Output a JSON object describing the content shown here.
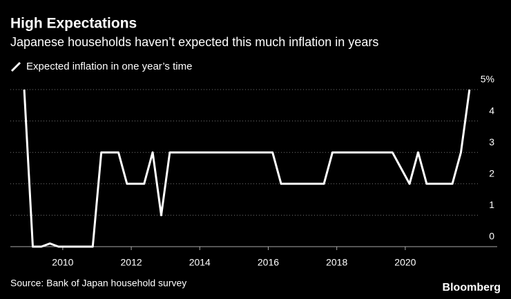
{
  "chart_data": {
    "type": "line",
    "title": "High Expectations",
    "subtitle": "Japanese households haven’t expected this much inflation in years",
    "source": "Source: Bank of Japan household survey",
    "brand": "Bloomberg",
    "x": [
      2008.875,
      2009.125,
      2009.375,
      2009.625,
      2009.875,
      2010.125,
      2010.375,
      2010.625,
      2010.875,
      2011.125,
      2011.375,
      2011.625,
      2011.875,
      2012.125,
      2012.375,
      2012.625,
      2012.875,
      2013.125,
      2013.375,
      2013.625,
      2013.875,
      2014.125,
      2014.375,
      2014.625,
      2014.875,
      2015.125,
      2015.375,
      2015.625,
      2015.875,
      2016.125,
      2016.375,
      2016.625,
      2016.875,
      2017.125,
      2017.375,
      2017.625,
      2017.875,
      2018.125,
      2018.375,
      2018.625,
      2018.875,
      2019.125,
      2019.375,
      2019.625,
      2019.875,
      2020.125,
      2020.375,
      2020.625,
      2020.875,
      2021.125,
      2021.375,
      2021.625,
      2021.875
    ],
    "series": [
      {
        "name": "Expected inflation in one year’s time",
        "color": "#ffffff",
        "values": [
          5,
          0,
          0,
          0.1,
          0,
          0,
          0,
          0,
          0,
          3,
          3,
          3,
          2,
          2,
          2,
          3,
          1,
          3,
          3,
          3,
          3,
          3,
          3,
          3,
          3,
          3,
          3,
          3,
          3,
          3,
          2,
          2,
          2,
          2,
          2,
          2,
          3,
          3,
          3,
          3,
          3,
          3,
          3,
          3,
          2.5,
          2,
          3,
          2,
          2,
          2,
          2,
          3,
          5
        ]
      }
    ],
    "xlim": [
      2008.47,
      2022.18
    ],
    "xticks": [
      2010,
      2012,
      2014,
      2016,
      2018,
      2020
    ],
    "ylim": [
      0,
      5
    ],
    "yticks": [
      0,
      1,
      2,
      3,
      4,
      {
        "value": 5,
        "label": "5%"
      }
    ],
    "grid": true
  }
}
